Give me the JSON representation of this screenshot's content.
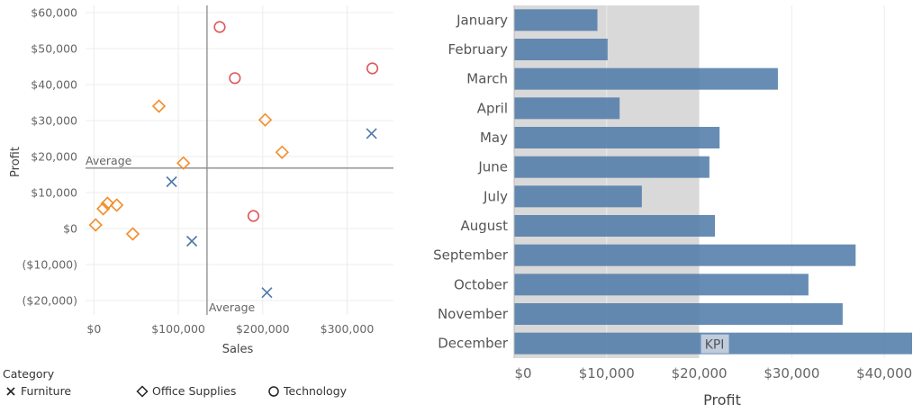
{
  "chart_data": [
    {
      "type": "scatter",
      "xlabel": "Sales",
      "ylabel": "Profit",
      "xlim": [
        -10000,
        355000
      ],
      "ylim": [
        -24000,
        62000
      ],
      "x_ticks": [
        {
          "v": 0,
          "label": "$0"
        },
        {
          "v": 100000,
          "label": "$100,000"
        },
        {
          "v": 200000,
          "label": "$200,000"
        },
        {
          "v": 300000,
          "label": "$300,000"
        }
      ],
      "y_ticks": [
        {
          "v": 60000,
          "label": "$60,000"
        },
        {
          "v": 50000,
          "label": "$50,000"
        },
        {
          "v": 40000,
          "label": "$40,000"
        },
        {
          "v": 30000,
          "label": "$30,000"
        },
        {
          "v": 20000,
          "label": "$20,000"
        },
        {
          "v": 10000,
          "label": "$10,000"
        },
        {
          "v": 0,
          "label": "$0"
        },
        {
          "v": -10000,
          "label": "($10,000)"
        },
        {
          "v": -20000,
          "label": "($20,000)"
        }
      ],
      "grid": true,
      "reference_lines": {
        "x": {
          "value": 134000,
          "label": "Average"
        },
        "y": {
          "value": 16800,
          "label": "Average"
        }
      },
      "legend": {
        "title": "Category",
        "position": "bottom",
        "entries": [
          {
            "name": "Furniture",
            "marker": "x"
          },
          {
            "name": "Office Supplies",
            "marker": "diamond"
          },
          {
            "name": "Technology",
            "marker": "circle"
          }
        ]
      },
      "series": [
        {
          "name": "Furniture",
          "marker": "x",
          "color": "#4e79a7",
          "points": [
            [
              92000,
              13000
            ],
            [
              116000,
              -3500
            ],
            [
              205000,
              -17800
            ],
            [
              329000,
              26400
            ]
          ]
        },
        {
          "name": "Office Supplies",
          "marker": "diamond",
          "color": "#f28e2b",
          "points": [
            [
              2000,
              1000
            ],
            [
              11000,
              5500
            ],
            [
              16000,
              7000
            ],
            [
              27000,
              6500
            ],
            [
              46000,
              -1500
            ],
            [
              77000,
              34000
            ],
            [
              106000,
              18200
            ],
            [
              203000,
              30200
            ],
            [
              223000,
              21200
            ]
          ]
        },
        {
          "name": "Technology",
          "marker": "circle",
          "color": "#e15759",
          "points": [
            [
              149000,
              56000
            ],
            [
              167000,
              41800
            ],
            [
              189000,
              3500
            ],
            [
              330000,
              44500
            ]
          ]
        }
      ]
    },
    {
      "type": "bar",
      "orientation": "horizontal",
      "xlabel": "Profit",
      "xlim": [
        0,
        43000
      ],
      "x_ticks": [
        {
          "v": 0,
          "label": "$0"
        },
        {
          "v": 10000,
          "label": "$10,000"
        },
        {
          "v": 20000,
          "label": "$20,000"
        },
        {
          "v": 30000,
          "label": "$30,000"
        },
        {
          "v": 40000,
          "label": "$40,000"
        }
      ],
      "categories": [
        "January",
        "February",
        "March",
        "April",
        "May",
        "June",
        "July",
        "August",
        "September",
        "October",
        "November",
        "December"
      ],
      "values": [
        9000,
        10100,
        28500,
        11400,
        22200,
        21100,
        13800,
        21700,
        36900,
        31800,
        35500,
        43000
      ],
      "color": "#4e79a7",
      "kpi_band": {
        "from": 0,
        "to": 20000,
        "label": "KPI",
        "color": "#d9d9d9"
      },
      "grid": true
    }
  ]
}
